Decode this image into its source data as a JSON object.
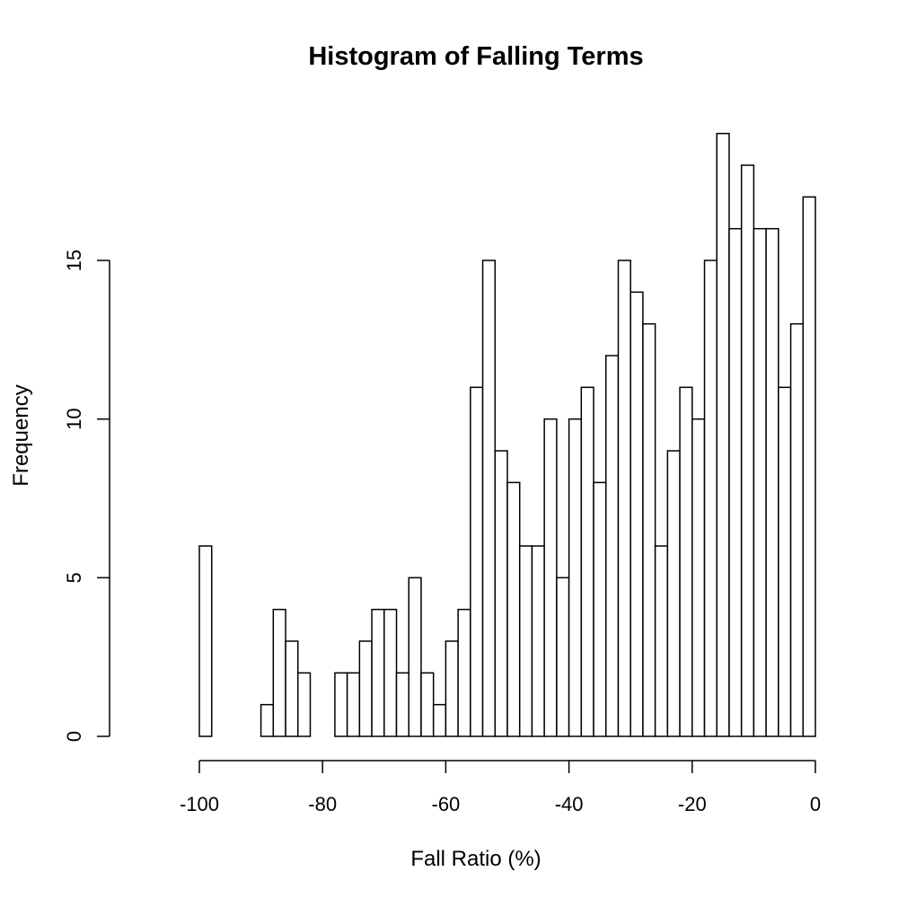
{
  "chart_data": {
    "type": "bar",
    "subtype": "histogram",
    "title": "Histogram of Falling Terms",
    "xlabel": "Fall Ratio (%)",
    "ylabel": "Frequency",
    "bin_width": 2,
    "bin_start": -100,
    "bin_end": 0,
    "counts": [
      6,
      0,
      0,
      0,
      0,
      1,
      4,
      3,
      2,
      0,
      0,
      2,
      2,
      3,
      4,
      4,
      2,
      5,
      2,
      1,
      3,
      4,
      11,
      15,
      9,
      8,
      6,
      6,
      10,
      5,
      10,
      11,
      8,
      12,
      15,
      14,
      13,
      6,
      9,
      11,
      10,
      15,
      19,
      16,
      18,
      16,
      16,
      11,
      13,
      17
    ],
    "xlim": [
      -100,
      0
    ],
    "ylim": [
      0,
      19
    ],
    "xticks": [
      -100,
      -80,
      -60,
      -40,
      -20,
      0
    ],
    "xtick_labels": [
      "-100",
      "-80",
      "-60",
      "-40",
      "-20",
      "0"
    ],
    "yticks": [
      0,
      5,
      10,
      15
    ],
    "ytick_labels": [
      "0",
      "5",
      "10",
      "15"
    ],
    "grid": false,
    "colors": {
      "bar_fill": "#ffffff",
      "bar_stroke": "#000000"
    }
  }
}
